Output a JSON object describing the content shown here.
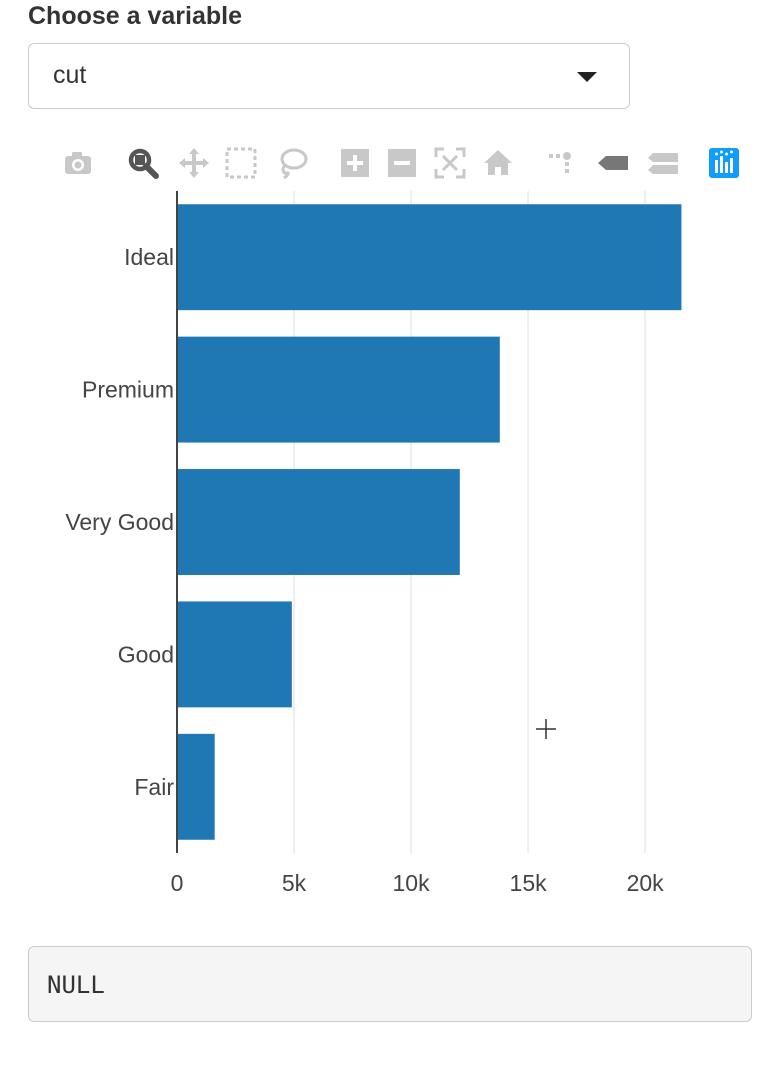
{
  "control": {
    "label": "Choose a variable",
    "selected": "cut"
  },
  "modebar": {
    "buttons": [
      {
        "name": "camera-icon",
        "color": "#c8c8c8"
      },
      {
        "name": "zoom-icon",
        "color": "#555555"
      },
      {
        "name": "pan-icon",
        "color": "#c8c8c8"
      },
      {
        "name": "box-select-icon",
        "color": "#c8c8c8"
      },
      {
        "name": "lasso-select-icon",
        "color": "#c8c8c8"
      },
      {
        "name": "zoom-in-icon",
        "color": "#c8c8c8"
      },
      {
        "name": "zoom-out-icon",
        "color": "#c8c8c8"
      },
      {
        "name": "autoscale-icon",
        "color": "#c8c8c8"
      },
      {
        "name": "reset-axes-icon",
        "color": "#c8c8c8"
      },
      {
        "name": "spike-lines-icon",
        "color": "#c8c8c8"
      },
      {
        "name": "hover-closest-icon",
        "color": "#777777"
      },
      {
        "name": "hover-compare-icon",
        "color": "#c8c8c8"
      },
      {
        "name": "plotly-logo-icon",
        "color": "#119dff"
      }
    ]
  },
  "chart_data": {
    "type": "bar",
    "orientation": "horizontal",
    "categories": [
      "Ideal",
      "Premium",
      "Very Good",
      "Good",
      "Fair"
    ],
    "values": [
      21551,
      13791,
      12082,
      4906,
      1610
    ],
    "xlim": [
      0,
      22600
    ],
    "xticks": [
      0,
      5000,
      10000,
      15000,
      20000
    ],
    "xtick_labels": [
      "0",
      "5k",
      "10k",
      "15k",
      "20k"
    ],
    "bar_color": "#1f77b4",
    "grid": true
  },
  "output": {
    "text": "NULL"
  }
}
